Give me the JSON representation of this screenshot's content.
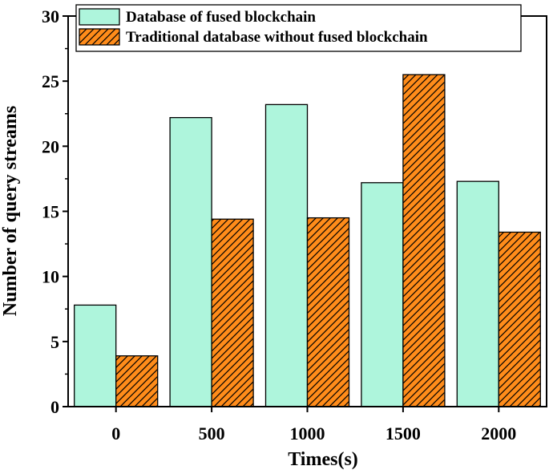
{
  "chart_data": {
    "type": "bar",
    "categories": [
      "0",
      "500",
      "1000",
      "1500",
      "2000"
    ],
    "series": [
      {
        "name": "Database of fused blockchain",
        "values": [
          7.8,
          22.2,
          23.2,
          17.2,
          17.3
        ],
        "color": "#aef5dc",
        "pattern": "solid"
      },
      {
        "name": "Traditional database without fused blockchain",
        "values": [
          3.9,
          14.4,
          14.5,
          25.5,
          13.4
        ],
        "color": "#ff8c1a",
        "pattern": "diagonal-hatch"
      }
    ],
    "title": "",
    "xlabel": "Times(s)",
    "ylabel": "Number of query streams",
    "ylim": [
      0,
      30
    ],
    "yticks": [
      0,
      5,
      10,
      15,
      20,
      25,
      30
    ],
    "ytick_labels": [
      "0",
      "5",
      "10",
      "15",
      "20",
      "25",
      "30"
    ],
    "grid": false,
    "legend_position": "top-left"
  }
}
